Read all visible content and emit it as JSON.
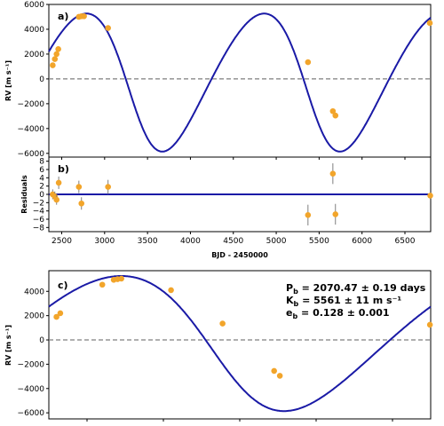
{
  "chart_data": [
    {
      "panel_label": "a)",
      "type": "line",
      "xlim": [
        2350,
        6800
      ],
      "ylim": [
        -6300,
        6000
      ],
      "ylabel": "RV [m s⁻¹]",
      "yticks": [
        -6000,
        -4000,
        -2000,
        0,
        2000,
        4000,
        6000
      ],
      "xticks": [
        2500,
        3000,
        3500,
        4000,
        4500,
        5000,
        5500,
        6000,
        6500
      ],
      "zero_line": true,
      "model": {
        "period": 2070.47,
        "semi_amplitude": 5561,
        "eccentricity": 0.128,
        "t_peak": 2790,
        "t_min": 3965
      },
      "series": [
        {
          "points": [
            {
              "x": 2395,
              "y": 1100
            },
            {
              "x": 2420,
              "y": 1600
            },
            {
              "x": 2440,
              "y": 2000
            },
            {
              "x": 2460,
              "y": 2400
            },
            {
              "x": 2700,
              "y": 5000
            },
            {
              "x": 2730,
              "y": 5050
            },
            {
              "x": 2760,
              "y": 5050
            },
            {
              "x": 3040,
              "y": 4100
            },
            {
              "x": 5370,
              "y": 1350
            },
            {
              "x": 5660,
              "y": -2600
            },
            {
              "x": 5690,
              "y": -2950
            },
            {
              "x": 6790,
              "y": 4500
            }
          ]
        }
      ]
    },
    {
      "panel_label": "b)",
      "type": "scatter",
      "xlim": [
        2350,
        6800
      ],
      "ylim": [
        -9,
        9
      ],
      "xlabel": "BJD - 2450000",
      "ylabel": "Residuals",
      "yticks": [
        -8,
        -6,
        -4,
        -2,
        0,
        2,
        4,
        6,
        8
      ],
      "xticks": [
        2500,
        3000,
        3500,
        4000,
        4500,
        5000,
        5500,
        6000,
        6500
      ],
      "zero_line": true,
      "series": [
        {
          "points": [
            {
              "x": 2395,
              "y": 0.0,
              "err": 1.2
            },
            {
              "x": 2420,
              "y": -0.5,
              "err": 1.2
            },
            {
              "x": 2440,
              "y": -1.3,
              "err": 1.2
            },
            {
              "x": 2465,
              "y": 2.8,
              "err": 1.5
            },
            {
              "x": 2700,
              "y": 1.8,
              "err": 1.5
            },
            {
              "x": 2730,
              "y": -2.2,
              "err": 1.5
            },
            {
              "x": 3040,
              "y": 1.8,
              "err": 1.7
            },
            {
              "x": 5370,
              "y": -5.0,
              "err": 2.5
            },
            {
              "x": 5660,
              "y": 5.0,
              "err": 2.5
            },
            {
              "x": 5690,
              "y": -4.8,
              "err": 2.5
            },
            {
              "x": 6795,
              "y": -0.3,
              "err": 1.5
            }
          ]
        }
      ]
    },
    {
      "panel_label": "c)",
      "type": "line",
      "xlim": [
        0,
        1
      ],
      "ylim": [
        -6500,
        5700
      ],
      "ylabel": "RV [m s⁻¹]",
      "yticks": [
        -6000,
        -4000,
        -2000,
        0,
        2000,
        4000
      ],
      "zero_line": true,
      "annotation": [
        {
          "sym": "P",
          "sub": "b",
          "rest": " = 2070.47 ± 0.19 days"
        },
        {
          "sym": "K",
          "sub": "b",
          "rest": " = 5561 ± 11 m s⁻¹"
        },
        {
          "sym": "e",
          "sub": "b",
          "rest": " = 0.128 ± 0.001"
        }
      ],
      "model": {
        "t_peak_phase": 0.19,
        "t_min_phase": 0.755
      },
      "series": [
        {
          "points": [
            {
              "x": 0.02,
              "y": 1900
            },
            {
              "x": 0.03,
              "y": 2200
            },
            {
              "x": 0.14,
              "y": 4550
            },
            {
              "x": 0.17,
              "y": 4950
            },
            {
              "x": 0.18,
              "y": 5000
            },
            {
              "x": 0.19,
              "y": 5050
            },
            {
              "x": 0.32,
              "y": 4100
            },
            {
              "x": 0.455,
              "y": 1350
            },
            {
              "x": 0.59,
              "y": -2550
            },
            {
              "x": 0.605,
              "y": -2950
            },
            {
              "x": 0.998,
              "y": 1250
            }
          ]
        }
      ]
    }
  ]
}
